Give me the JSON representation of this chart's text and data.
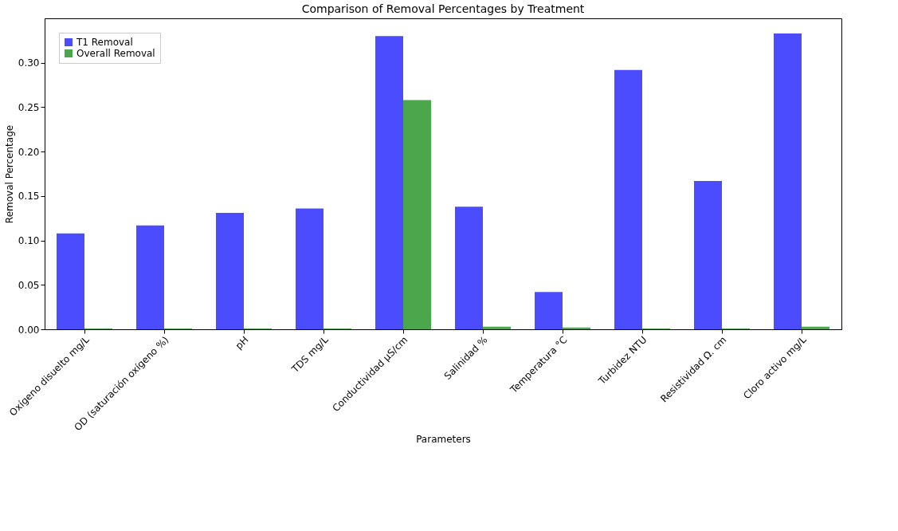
{
  "chart_data": {
    "type": "bar",
    "title": "Comparison of Removal Percentages by Treatment",
    "xlabel": "Parameters",
    "ylabel": "Removal Percentage",
    "categories": [
      "Oxígeno disuelto mg/L",
      "OD (saturación oxígeno %)",
      "pH",
      "TDS mg/L",
      "Conductividad µS/cm",
      "Salinidad %",
      "Temperatura °C",
      "Turbidez NTU",
      "Resistividad Ω. cm",
      "Cloro activo mg/L"
    ],
    "series": [
      {
        "name": "T1 Removal",
        "color": "#4c4cff",
        "values": [
          0.108,
          0.117,
          0.131,
          0.136,
          0.33,
          0.138,
          0.042,
          0.292,
          0.167,
          0.333
        ]
      },
      {
        "name": "Overall Removal",
        "color": "#4ca64c",
        "values": [
          0.001,
          0.001,
          0.001,
          0.001,
          0.258,
          0.003,
          0.002,
          0.001,
          0.001,
          0.003
        ]
      }
    ],
    "ylim": [
      0,
      0.35
    ],
    "yticks": [
      {
        "value": 0,
        "label": "0.00"
      },
      0.05,
      {
        "value": 0.1,
        "label": "0.10"
      },
      0.15,
      {
        "value": 0.2,
        "label": "0.20"
      },
      0.25,
      {
        "value": 0.3,
        "label": "0.30"
      }
    ],
    "grid": false,
    "legend": "top left"
  }
}
